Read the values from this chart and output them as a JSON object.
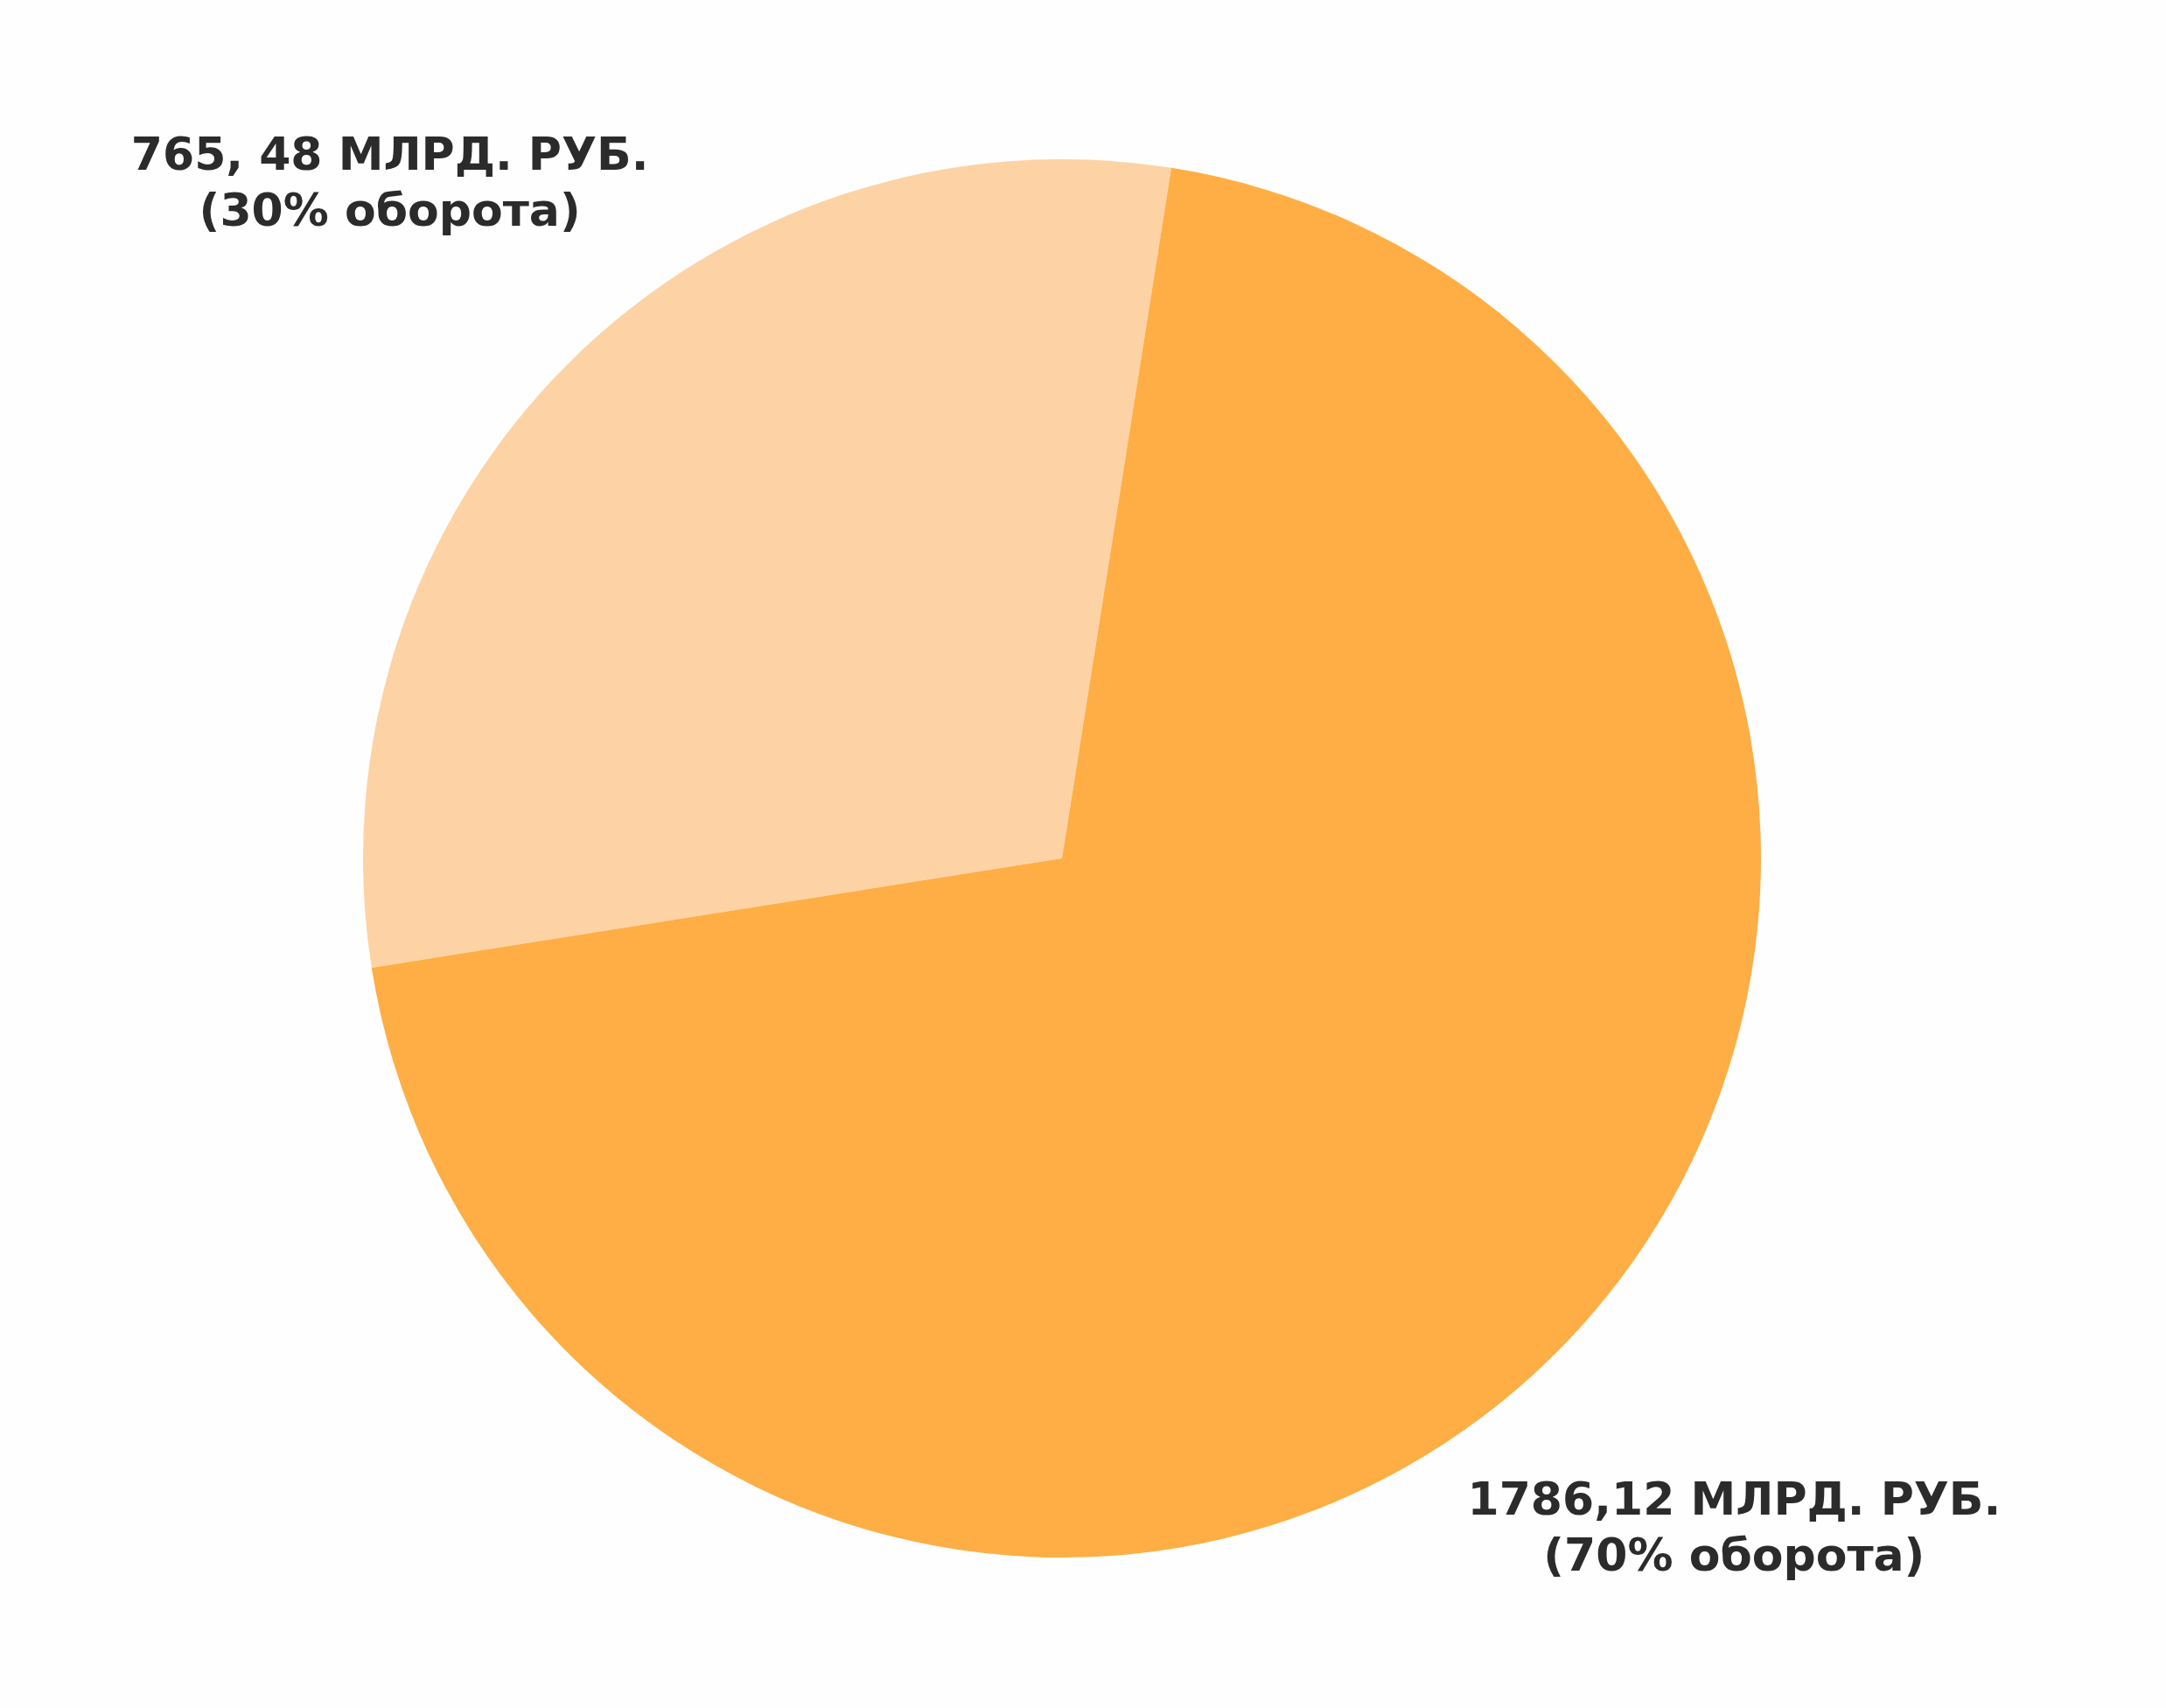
{
  "chart_data": {
    "type": "pie",
    "categories": [
      null,
      null
    ],
    "values": [
      765.48,
      1786.12
    ],
    "colors": [
      "#fdd3a5",
      "#feae44"
    ],
    "value_labels": [
      "765, 48 МЛРД. РУБ.\n(30% оборота)",
      "1786,12 МЛРД. РУБ.\n(70% оборота)"
    ],
    "legend": false
  }
}
